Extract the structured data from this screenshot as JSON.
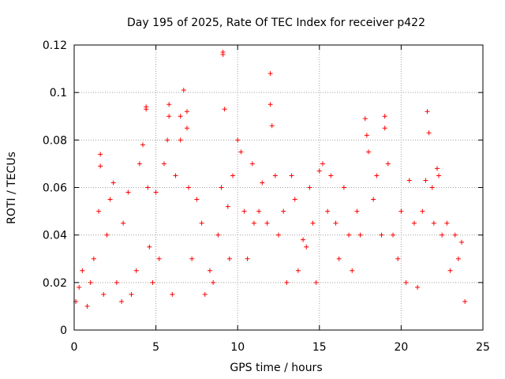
{
  "chart_data": {
    "type": "scatter",
    "title": "Day 195 of 2025, Rate Of TEC Index for receiver p422",
    "xlabel": "GPS time / hours",
    "ylabel": "ROTI / TECUs",
    "xlim": [
      0,
      25
    ],
    "ylim": [
      0,
      0.12
    ],
    "x_ticks": [
      0,
      5,
      10,
      15,
      20,
      25
    ],
    "y_ticks": [
      0,
      0.02,
      0.04,
      0.06,
      0.08,
      0.1,
      0.12
    ],
    "x_tick_labels": [
      "0",
      "5",
      "10",
      "15",
      "20",
      "25"
    ],
    "y_tick_labels": [
      "0",
      "0.02",
      "0.04",
      "0.06",
      "0.08",
      "0.1",
      "0.12"
    ],
    "grid": true,
    "marker": "plus",
    "color": "#ff0000",
    "x": [
      0.1,
      0.3,
      0.5,
      0.8,
      1.0,
      1.2,
      1.5,
      1.6,
      1.6,
      1.8,
      2.0,
      2.2,
      2.4,
      2.6,
      2.9,
      3.0,
      3.3,
      3.5,
      3.8,
      4.0,
      4.2,
      4.4,
      4.4,
      4.5,
      4.6,
      4.8,
      5.0,
      5.2,
      5.5,
      5.7,
      5.8,
      5.8,
      6.0,
      6.2,
      6.5,
      6.5,
      6.7,
      6.9,
      6.9,
      7.0,
      7.2,
      7.5,
      7.8,
      8.0,
      8.3,
      8.5,
      8.8,
      9.0,
      9.1,
      9.1,
      9.2,
      9.4,
      9.5,
      9.7,
      10.0,
      10.2,
      10.4,
      10.6,
      10.9,
      11.0,
      11.3,
      11.5,
      11.8,
      12.0,
      12.0,
      12.1,
      12.3,
      12.5,
      12.8,
      13.0,
      13.3,
      13.5,
      13.7,
      14.0,
      14.2,
      14.4,
      14.6,
      14.8,
      15.0,
      15.2,
      15.5,
      15.7,
      16.0,
      16.2,
      16.5,
      16.8,
      17.0,
      17.3,
      17.5,
      17.8,
      17.9,
      18.0,
      18.3,
      18.5,
      18.8,
      19.0,
      19.0,
      19.2,
      19.5,
      19.8,
      20.0,
      20.3,
      20.5,
      20.8,
      21.0,
      21.3,
      21.5,
      21.6,
      21.7,
      21.9,
      22.0,
      22.2,
      22.3,
      22.5,
      22.8,
      23.0,
      23.3,
      23.5,
      23.7,
      23.9
    ],
    "y": [
      0.012,
      0.018,
      0.025,
      0.01,
      0.02,
      0.03,
      0.05,
      0.074,
      0.069,
      0.015,
      0.04,
      0.055,
      0.062,
      0.02,
      0.012,
      0.045,
      0.058,
      0.015,
      0.025,
      0.07,
      0.078,
      0.093,
      0.094,
      0.06,
      0.035,
      0.02,
      0.058,
      0.03,
      0.07,
      0.08,
      0.095,
      0.09,
      0.015,
      0.065,
      0.09,
      0.08,
      0.101,
      0.092,
      0.085,
      0.06,
      0.03,
      0.055,
      0.045,
      0.015,
      0.025,
      0.02,
      0.04,
      0.06,
      0.116,
      0.117,
      0.093,
      0.052,
      0.03,
      0.065,
      0.08,
      0.075,
      0.05,
      0.03,
      0.07,
      0.045,
      0.05,
      0.062,
      0.045,
      0.095,
      0.108,
      0.086,
      0.065,
      0.04,
      0.05,
      0.02,
      0.065,
      0.055,
      0.025,
      0.038,
      0.035,
      0.06,
      0.045,
      0.02,
      0.067,
      0.07,
      0.05,
      0.065,
      0.045,
      0.03,
      0.06,
      0.04,
      0.025,
      0.05,
      0.04,
      0.089,
      0.082,
      0.075,
      0.055,
      0.065,
      0.04,
      0.09,
      0.085,
      0.07,
      0.04,
      0.03,
      0.05,
      0.02,
      0.063,
      0.045,
      0.018,
      0.05,
      0.063,
      0.092,
      0.083,
      0.06,
      0.045,
      0.068,
      0.065,
      0.04,
      0.045,
      0.025,
      0.04,
      0.03,
      0.037,
      0.012
    ]
  }
}
